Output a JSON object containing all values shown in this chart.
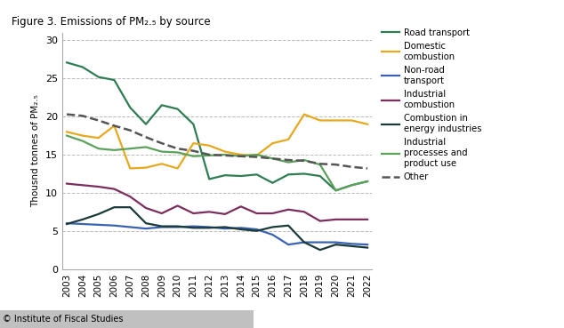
{
  "title": "Figure 3. Emissions of PM₂.₅ by source",
  "ylabel": "Thousnd tonnes of PM₂.₅",
  "years": [
    2003,
    2004,
    2005,
    2006,
    2007,
    2008,
    2009,
    2010,
    2011,
    2012,
    2013,
    2014,
    2015,
    2016,
    2017,
    2018,
    2019,
    2020,
    2021,
    2022
  ],
  "series": {
    "Road transport": {
      "color": "#2e7d52",
      "dash": "solid",
      "linewidth": 1.6,
      "data": [
        27.1,
        26.5,
        25.2,
        24.8,
        21.2,
        19.0,
        21.5,
        21.0,
        19.0,
        11.8,
        12.3,
        12.2,
        12.4,
        11.3,
        12.4,
        12.5,
        12.2,
        10.3,
        11.0,
        11.5
      ]
    },
    "Domestic combustion": {
      "color": "#e8a81e",
      "dash": "solid",
      "linewidth": 1.6,
      "data": [
        18.0,
        17.5,
        17.2,
        18.8,
        13.2,
        13.3,
        13.8,
        13.2,
        16.5,
        16.2,
        15.4,
        15.0,
        14.9,
        16.5,
        17.0,
        20.3,
        19.5,
        19.5,
        19.5,
        19.0
      ]
    },
    "Non-road transport": {
      "color": "#3a62b3",
      "dash": "solid",
      "linewidth": 1.6,
      "data": [
        6.0,
        5.9,
        5.8,
        5.7,
        5.5,
        5.3,
        5.5,
        5.5,
        5.6,
        5.5,
        5.3,
        5.4,
        5.2,
        4.5,
        3.2,
        3.5,
        3.5,
        3.5,
        3.3,
        3.2
      ]
    },
    "Industrial combustion": {
      "color": "#7b2d5e",
      "dash": "solid",
      "linewidth": 1.6,
      "data": [
        11.2,
        11.0,
        10.8,
        10.5,
        9.5,
        8.0,
        7.3,
        8.3,
        7.3,
        7.5,
        7.2,
        8.2,
        7.3,
        7.3,
        7.8,
        7.5,
        6.3,
        6.5,
        6.5,
        6.5
      ]
    },
    "Combustion in energy industries": {
      "color": "#1a3a3a",
      "dash": "solid",
      "linewidth": 1.6,
      "data": [
        5.9,
        6.5,
        7.2,
        8.1,
        8.1,
        6.0,
        5.6,
        5.6,
        5.4,
        5.4,
        5.5,
        5.2,
        5.0,
        5.5,
        5.7,
        3.5,
        2.5,
        3.2,
        3.0,
        2.8
      ]
    },
    "Industrial processes and product use": {
      "color": "#5ba05b",
      "dash": "solid",
      "linewidth": 1.6,
      "data": [
        17.5,
        16.8,
        15.8,
        15.6,
        15.8,
        16.0,
        15.4,
        15.3,
        14.8,
        14.9,
        15.0,
        14.8,
        15.0,
        14.5,
        14.0,
        14.3,
        13.7,
        10.3,
        11.0,
        11.5
      ]
    },
    "Other": {
      "color": "#555555",
      "dash": "dashed",
      "linewidth": 1.8,
      "data": [
        20.3,
        20.1,
        19.5,
        18.8,
        18.2,
        17.3,
        16.5,
        15.8,
        15.5,
        15.0,
        14.9,
        14.8,
        14.7,
        14.5,
        14.3,
        14.2,
        13.8,
        13.7,
        13.4,
        13.2
      ]
    }
  },
  "ylim": [
    0,
    31
  ],
  "yticks": [
    0,
    5,
    10,
    15,
    20,
    25,
    30
  ],
  "bg_color": "#ffffff",
  "grid_color": "#bbbbbb",
  "footer": "© Institute of Fiscal Studies",
  "footer_bg": "#c0c0c0"
}
